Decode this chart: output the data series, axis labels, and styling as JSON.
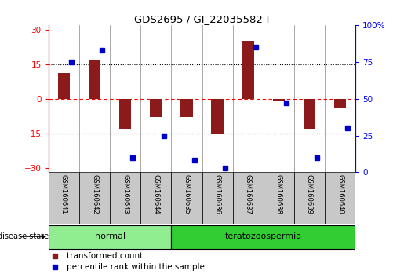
{
  "title": "GDS2695 / GI_22035582-I",
  "samples": [
    "GSM160641",
    "GSM160642",
    "GSM160643",
    "GSM160644",
    "GSM160635",
    "GSM160636",
    "GSM160637",
    "GSM160638",
    "GSM160639",
    "GSM160640"
  ],
  "transformed_count": [
    11,
    17,
    -13,
    -8,
    -8,
    -15.5,
    25,
    -1,
    -13,
    -4
  ],
  "percentile_rank": [
    75,
    83,
    10,
    25,
    8,
    3,
    85,
    47,
    10,
    30
  ],
  "disease_state": [
    "normal",
    "normal",
    "normal",
    "normal",
    "teratozoospermia",
    "teratozoospermia",
    "teratozoospermia",
    "teratozoospermia",
    "teratozoospermia",
    "teratozoospermia"
  ],
  "normal_color": "#90EE90",
  "terato_color": "#32CD32",
  "bar_color": "#8B1A1A",
  "dot_color": "#0000CD",
  "label_bg": "#C8C8C8",
  "ylim_left": [
    -32,
    32
  ],
  "ylim_right": [
    0,
    100
  ],
  "yticks_left": [
    -30,
    -15,
    0,
    15,
    30
  ],
  "yticks_right": [
    0,
    25,
    50,
    75,
    100
  ],
  "legend_items": [
    "transformed count",
    "percentile rank within the sample"
  ]
}
